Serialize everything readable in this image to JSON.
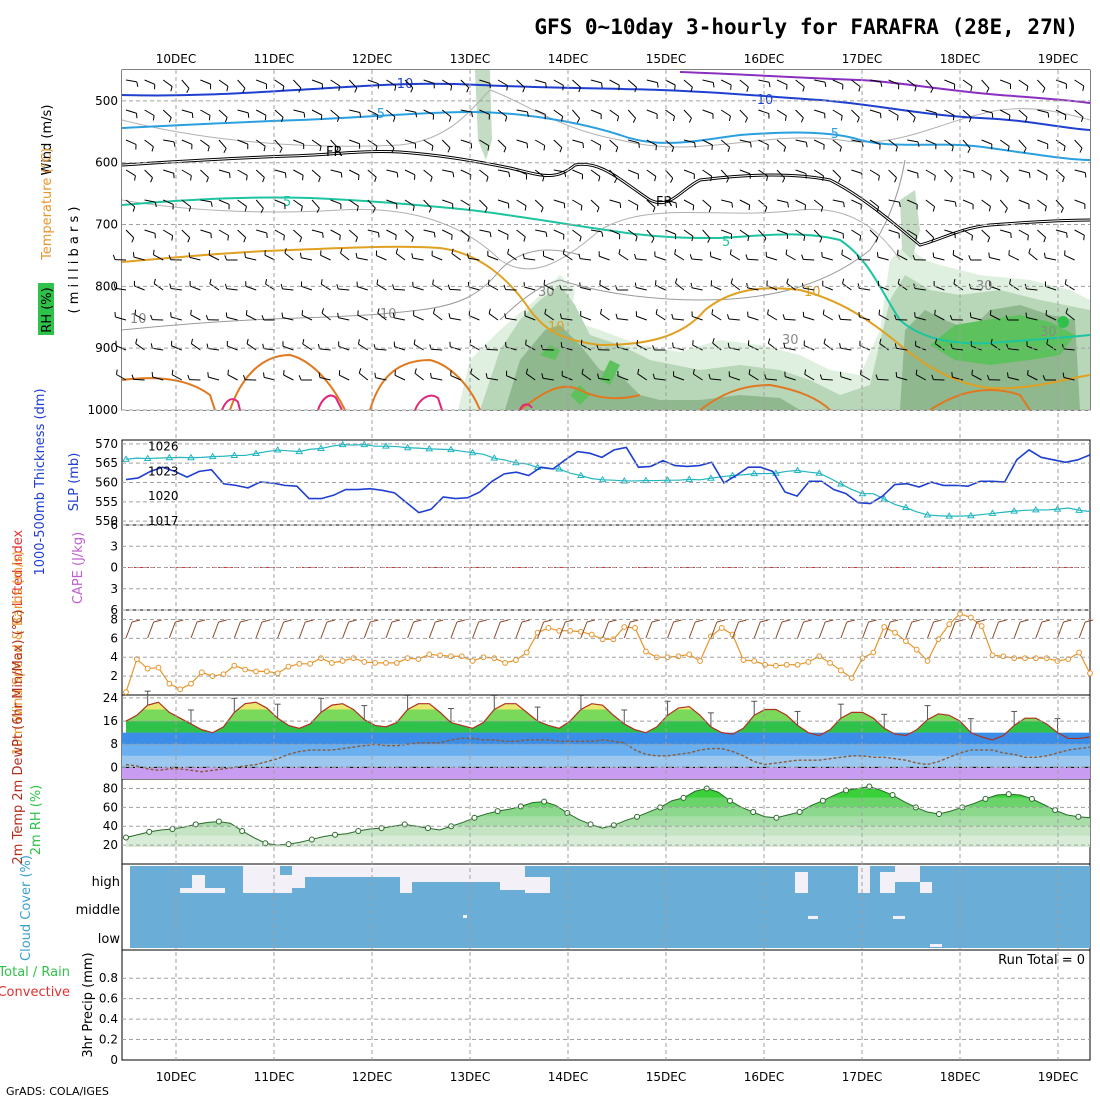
{
  "title": "GFS 0~10day 3-hourly for FARAFRA (28E, 27N)",
  "footer": "GrADS: COLA/IGES",
  "dates": [
    "10DEC",
    "11DEC",
    "12DEC",
    "13DEC",
    "14DEC",
    "15DEC",
    "16DEC",
    "17DEC",
    "18DEC",
    "19DEC"
  ],
  "colors": {
    "grid": "#a0a0a0",
    "accent_blue": "#1f3fd0",
    "cyan": "#22b6c0",
    "orange": "#e8952a",
    "green": "#2fc24a",
    "brown": "#8a4a2a",
    "sky": "#6aaed8"
  },
  "chart_data": [
    {
      "type": "contour",
      "name": "upper-air",
      "ylabel_wind": "Wind (m/s)",
      "ylabel_temp": "Temperature (°C)",
      "ylabel_rh": "RH (%)",
      "ylabel_pressure": "( m i l l i b a r s )",
      "y_ticks": [
        "500",
        "600",
        "700",
        "800",
        "900",
        "1000"
      ],
      "ylim": [
        1000,
        450
      ],
      "isotherm_labels": [
        "-10",
        "-5",
        "5",
        "10",
        "-5",
        "5",
        "10",
        "-10"
      ],
      "freezing_labels": [
        "FR",
        "FR"
      ],
      "rh_labels": [
        "10",
        "10",
        "30",
        "30",
        "30",
        "30"
      ]
    },
    {
      "type": "line",
      "name": "sea-level-pressure and thickness",
      "ylabel_thickness": "1000-500mb Thickness (dm)",
      "ylabel_slp": "SLP (mb)",
      "thickness_ticks": [
        "570",
        "565",
        "560",
        "555",
        "550"
      ],
      "slp_ticks": [
        "1026",
        "1023",
        "1020",
        "1017"
      ],
      "series": [
        {
          "name": "SLP (mb)",
          "values": [
            1022,
            1022.2,
            1023,
            1023.5,
            1023,
            1022.3,
            1023,
            1023.2,
            1021.5,
            1021.3,
            1021,
            1021.7,
            1021.6,
            1021.3,
            1021.2,
            1019.7,
            1019.7,
            1020.1,
            1020.8,
            1020.8,
            1020.9,
            1020.7,
            1020.4,
            1019.2,
            1018,
            1018.4,
            1019.9,
            1019.7,
            1019.8,
            1020.5,
            1021.8,
            1022.7,
            1022.9,
            1022.5,
            1023.5,
            1023.3,
            1024.4,
            1025.4,
            1025.2,
            1024.7,
            1025.6,
            1025.9,
            1023.5,
            1023.6,
            1024.3,
            1023.7,
            1023.6,
            1023.7,
            1024.1,
            1021.6,
            1022.5,
            1023.5,
            1023.5,
            1023,
            1020.5,
            1020,
            1021.8,
            1021.8,
            1020.8,
            1020.3,
            1019.2,
            1019.1,
            1020,
            1021.4,
            1021.5,
            1021.1,
            1021.7,
            1021.3,
            1021.3,
            1021.2,
            1021.8,
            1021.8,
            1021.7,
            1024.4,
            1025.6,
            1024.7,
            1024.4,
            1024.1,
            1024.4,
            1025
          ]
        },
        {
          "name": "1000-500mb Thickness (dm)",
          "values": [
            566,
            566.3,
            566.2,
            566.3,
            566.4,
            566.5,
            566.4,
            566.5,
            566.7,
            566.8,
            567,
            567,
            567.5,
            568,
            568.4,
            568.2,
            568,
            568.6,
            568.8,
            569.4,
            569.8,
            569.7,
            569.8,
            569.4,
            569.4,
            569.3,
            569,
            568.9,
            568.7,
            568.6,
            568.5,
            568.1,
            567.7,
            567.3,
            566.3,
            565.8,
            565.1,
            564.8,
            563.9,
            563.6,
            563.5,
            562.4,
            561.8,
            561,
            560.7,
            560.6,
            560.4,
            560.4,
            560.5,
            560.5,
            560.6,
            560.6,
            560.8,
            560.7,
            561.1,
            561.5,
            561.8,
            562,
            562.3,
            562.3,
            562.4,
            562.9,
            563.1,
            562.7,
            562.4,
            561.1,
            559.6,
            558.2,
            557.1,
            557.1,
            555.7,
            554.3,
            553.5,
            552.4,
            551.6,
            551.4,
            551.3,
            551.3,
            551.4,
            551.7,
            552,
            552.3,
            552.6,
            552.8,
            552.9,
            552.9,
            553.1,
            553.4,
            552.8,
            552.5
          ]
        }
      ]
    },
    {
      "type": "line",
      "name": "lifted-index and cape",
      "ylabel_li": "Lifted Index",
      "ylabel_cape": "CAPE (J/kg)",
      "y_ticks": [
        "-6",
        "-3",
        "0",
        "3",
        "6"
      ],
      "ylim": [
        -6,
        6
      ],
      "series": [
        {
          "name": "Lifted Index",
          "values": []
        }
      ]
    },
    {
      "type": "line",
      "name": "10m wind",
      "ylabel": "10m Wind Speed & Barbs (m/s)",
      "y_ticks": [
        "2",
        "4",
        "6",
        "8"
      ],
      "ylim": [
        0,
        9
      ],
      "series": [
        {
          "name": "10m Wind Speed",
          "values": [
            0.3,
            3.8,
            2.8,
            2.9,
            1.2,
            0.6,
            1.2,
            2.4,
            2,
            2.2,
            3.1,
            2.7,
            2.5,
            2.5,
            2.3,
            3,
            3.3,
            3.3,
            3.9,
            3.4,
            3.6,
            3.9,
            3.5,
            3.4,
            3.4,
            3.4,
            3.9,
            3.8,
            4.3,
            4.2,
            4.1,
            4.1,
            3.6,
            4,
            3.9,
            3.4,
            3.7,
            4.5,
            6.6,
            7.1,
            6.8,
            6.8,
            6.7,
            6.4,
            5.9,
            5.9,
            7.2,
            7.1,
            4.6,
            4,
            4,
            4.1,
            4.3,
            3.6,
            6.2,
            7.1,
            6.4,
            3.7,
            3.6,
            3.2,
            3.1,
            3.2,
            3.2,
            3.5,
            4.1,
            3.4,
            2.6,
            1.8,
            3.9,
            4.5,
            7.2,
            6.6,
            5.7,
            4.8,
            3.6,
            5.9,
            7.5,
            8.6,
            8.2,
            7.3,
            4.2,
            4.1,
            3.9,
            3.9,
            3.9,
            3.9,
            3.6,
            3.8,
            4.5,
            2.3
          ]
        }
      ]
    },
    {
      "type": "line",
      "name": "2m temperature",
      "ylabel": "2m Temp 2m DewPt (6hr Min/Max) (°C)",
      "y_ticks": [
        "0",
        "8",
        "16",
        "24"
      ],
      "ylim": [
        -4,
        24
      ],
      "series": [
        {
          "name": "2m Temp",
          "values": [
            16,
            18,
            21.5,
            22.5,
            19,
            17,
            15,
            13,
            12,
            14,
            19,
            22,
            22.5,
            20.5,
            17,
            14.5,
            13.5,
            15,
            19,
            21.5,
            22,
            20,
            16.5,
            14.5,
            14,
            15.5,
            20,
            22,
            22,
            19,
            15.5,
            14.5,
            13.5,
            15.5,
            20,
            22,
            22,
            19,
            16,
            14.5,
            13.5,
            16,
            20,
            22,
            21.5,
            18,
            15,
            13,
            12,
            14,
            18,
            20.5,
            21,
            18,
            14,
            12,
            11.5,
            13.5,
            18,
            20,
            20,
            18,
            14.5,
            12,
            11,
            13,
            17,
            19,
            19,
            17,
            13.5,
            11.5,
            11,
            13,
            16.5,
            18.5,
            18,
            16,
            12,
            10.5,
            9.5,
            11,
            14.5,
            17,
            17,
            15,
            12,
            10,
            10,
            10.5
          ]
        },
        {
          "name": "2m DewPt",
          "values": [
            1,
            0.5,
            -0.5,
            -1,
            -0.5,
            -0.5,
            -1,
            -1.5,
            -1,
            -0.5,
            0,
            0.5,
            1,
            2,
            3,
            4.5,
            5.5,
            6,
            6,
            6,
            6.5,
            7,
            7.5,
            8,
            7.5,
            7.5,
            8,
            8.5,
            8.5,
            8.5,
            9.5,
            10,
            10,
            9.5,
            9.5,
            9,
            9,
            9.5,
            9.5,
            9.5,
            9,
            9,
            9,
            9,
            9.5,
            9,
            8.5,
            6,
            4.5,
            4,
            4,
            4.5,
            5,
            6,
            6.5,
            6.5,
            5.5,
            4,
            2,
            1,
            1.5,
            2,
            2.5,
            2.5,
            2.5,
            3,
            3.5,
            4,
            4,
            3.5,
            3.5,
            3,
            2.5,
            1.5,
            1,
            2,
            3.5,
            5,
            6,
            6,
            6,
            5,
            4.5,
            3.5,
            3.5,
            4,
            5,
            6,
            6.5,
            7
          ]
        }
      ]
    },
    {
      "type": "area",
      "name": "2m relative humidity",
      "ylabel": "2m RH (%)",
      "y_ticks": [
        "20",
        "40",
        "60",
        "80"
      ],
      "ylim": [
        0,
        90
      ],
      "series": [
        {
          "name": "2m RH",
          "values": [
            28,
            31,
            34,
            36,
            37,
            39,
            42,
            44,
            45,
            43,
            35,
            28,
            22,
            20,
            21,
            23,
            26,
            29,
            31,
            32,
            35,
            37,
            38,
            40,
            42,
            40,
            38,
            36,
            40,
            44,
            49,
            53,
            56,
            58,
            61,
            65,
            66,
            62,
            54,
            47,
            42,
            38,
            41,
            46,
            50,
            55,
            60,
            67,
            70,
            77,
            80,
            76,
            67,
            60,
            55,
            50,
            49,
            52,
            55,
            62,
            67,
            73,
            78,
            80,
            82,
            78,
            73,
            66,
            60,
            55,
            53,
            56,
            60,
            64,
            69,
            73,
            74,
            73,
            69,
            63,
            57,
            52,
            50,
            49
          ]
        }
      ]
    },
    {
      "type": "heatmap",
      "name": "cloud cover",
      "ylabel": "Cloud Cover (%)",
      "levels": [
        "high",
        "middle",
        "low"
      ]
    },
    {
      "type": "bar",
      "name": "3hr precipitation",
      "ylabel": "3hr Precip (mm)",
      "legend_total": "Total / Rain",
      "legend_convective": "Convective",
      "run_total": "Run Total = 0",
      "y_ticks": [
        "0",
        "0.2",
        "0.4",
        "0.6",
        "0.8"
      ],
      "ylim": [
        0,
        1
      ],
      "series": [
        {
          "name": "3hr Precip",
          "values": []
        }
      ]
    }
  ]
}
